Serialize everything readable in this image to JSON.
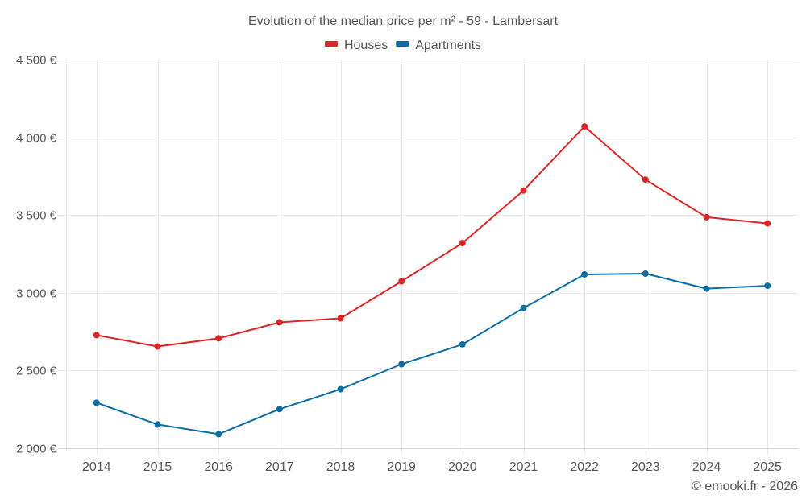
{
  "chart_data": {
    "type": "line",
    "title": "Evolution of the median price per m² - 59 - Lambersart",
    "xlabel": "",
    "ylabel": "",
    "categories": [
      "2014",
      "2015",
      "2016",
      "2017",
      "2018",
      "2019",
      "2020",
      "2021",
      "2022",
      "2023",
      "2024",
      "2025"
    ],
    "series": [
      {
        "name": "Houses",
        "color": "#dc2626",
        "values": [
          2728,
          2655,
          2707,
          2810,
          2836,
          3074,
          3320,
          3658,
          4070,
          3728,
          3486,
          3446
        ]
      },
      {
        "name": "Apartments",
        "color": "#0a6ea4",
        "values": [
          2293,
          2153,
          2091,
          2252,
          2380,
          2541,
          2668,
          2902,
          3118,
          3123,
          3027,
          3045
        ]
      }
    ],
    "ylim": [
      2000,
      4500
    ],
    "yticks": [
      2000,
      2500,
      3000,
      3500,
      4000,
      4500
    ],
    "ytick_labels": [
      "2 000 €",
      "2 500 €",
      "3 000 €",
      "3 500 €",
      "4 000 €",
      "4 500 €"
    ],
    "grid": true,
    "legend_position": "top-center",
    "credit": "© emooki.fr - 2026"
  }
}
